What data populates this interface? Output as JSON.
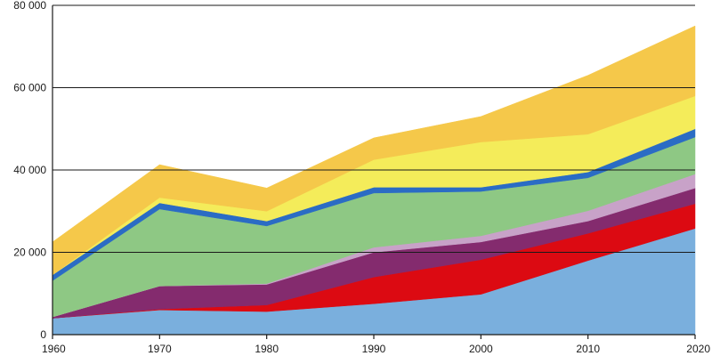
{
  "chart_data": {
    "type": "area",
    "stacked": true,
    "x": [
      1960,
      1970,
      1980,
      1990,
      2000,
      2010,
      2020
    ],
    "x_tick_labels": [
      "1960",
      "1970",
      "1980",
      "1990",
      "2000",
      "2010",
      "2020"
    ],
    "ylim": [
      0,
      80000
    ],
    "y_ticks": [
      0,
      20000,
      40000,
      60000,
      80000
    ],
    "y_tick_labels": [
      "0",
      "20 000",
      "40 000",
      "60 000",
      "80 000"
    ],
    "grid": "horizontal",
    "legend": "none",
    "series": [
      {
        "color": "#7aafdd",
        "values": [
          4000,
          6000,
          5600,
          7500,
          9800,
          18000,
          25800
        ]
      },
      {
        "color": "#dc0a12",
        "values": [
          0,
          200,
          1600,
          6500,
          8400,
          6600,
          6000
        ]
      },
      {
        "color": "#842b6e",
        "values": [
          300,
          5600,
          5000,
          6000,
          4300,
          3000,
          3800
        ]
      },
      {
        "color": "#c8a2c8",
        "values": [
          0,
          0,
          200,
          1200,
          1500,
          2500,
          3400
        ]
      },
      {
        "color": "#8ec884",
        "values": [
          8800,
          18700,
          14000,
          13200,
          10800,
          8000,
          9000
        ]
      },
      {
        "color": "#2b6cc4",
        "values": [
          1400,
          1500,
          1200,
          1400,
          1000,
          1400,
          2000
        ]
      },
      {
        "color": "#f4ec5a",
        "values": [
          0,
          1300,
          2400,
          6700,
          11000,
          9200,
          8000
        ]
      },
      {
        "color": "#f5c84a",
        "values": [
          8000,
          8000,
          5600,
          5300,
          6200,
          14300,
          17000
        ]
      }
    ]
  }
}
